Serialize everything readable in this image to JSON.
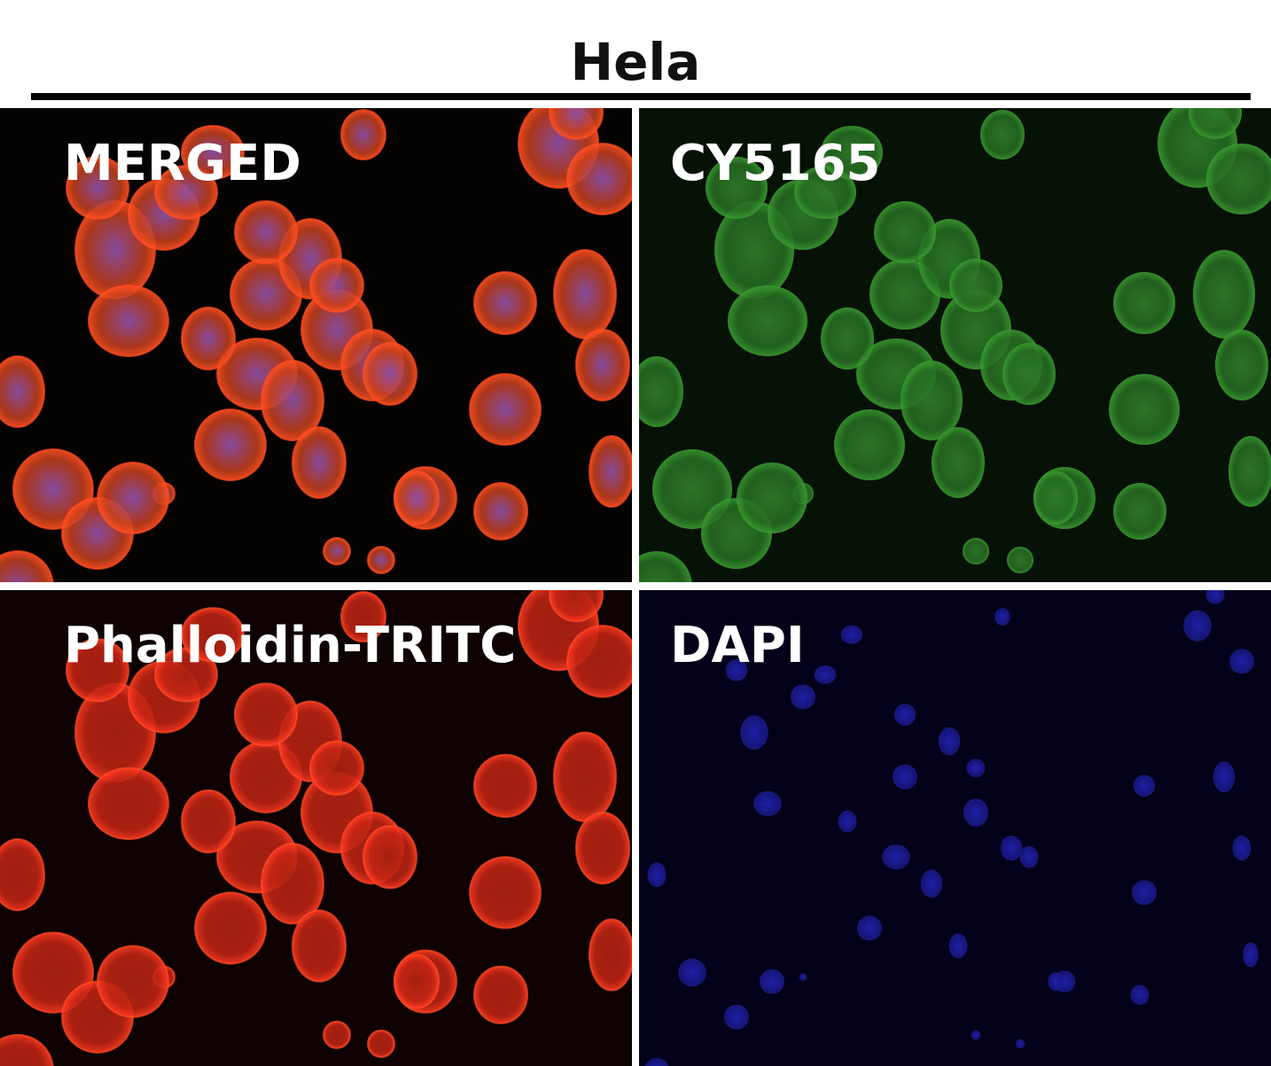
{
  "figure": {
    "title": "Hela",
    "panels": [
      {
        "label": "MERGED",
        "channel": "merged",
        "colors": [
          "#e0401a",
          "#7a4fb0",
          "#3fa030"
        ]
      },
      {
        "label": "CY5165",
        "channel": "green",
        "colors": [
          "#2f8a2a"
        ]
      },
      {
        "label": "Phalloidin-TRITC",
        "channel": "red",
        "colors": [
          "#e02818"
        ]
      },
      {
        "label": "DAPI",
        "channel": "blue",
        "colors": [
          "#2020c0"
        ]
      }
    ]
  }
}
